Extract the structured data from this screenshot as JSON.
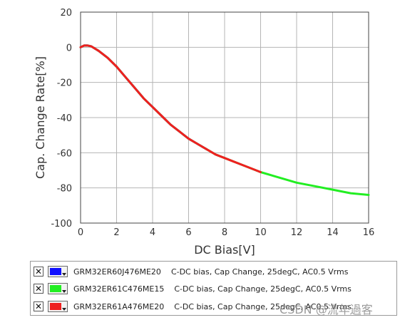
{
  "chart_data": {
    "type": "line",
    "xlabel": "DC Bias[V]",
    "ylabel": "Cap. Change Rate[%]",
    "xlim": [
      0,
      16
    ],
    "ylim": [
      -100,
      20
    ],
    "x_ticks": [
      0,
      2,
      4,
      6,
      8,
      10,
      12,
      14,
      16
    ],
    "y_ticks": [
      20,
      0,
      -20,
      -40,
      -60,
      -80,
      -100
    ],
    "grid": true,
    "legend_position": "bottom",
    "series": [
      {
        "name": "GRM32ER60J476ME20",
        "color": "#1010ff",
        "x": [
          0,
          0.2,
          0.4,
          0.6,
          1.0,
          1.5,
          2.0,
          2.5,
          3.0,
          3.5,
          4.0,
          4.5,
          5.0,
          5.5,
          6.0,
          6.5,
          7.0
        ],
        "y": [
          0,
          1,
          1,
          0.5,
          -2,
          -6,
          -11,
          -17,
          -23,
          -29,
          -34,
          -39,
          -44,
          -48,
          -52,
          -55,
          -58
        ]
      },
      {
        "name": "GRM32ER61C476ME15",
        "color": "#22ee22",
        "x": [
          0,
          0.2,
          0.4,
          0.6,
          1.0,
          1.5,
          2.0,
          2.5,
          3.0,
          3.5,
          4.0,
          4.5,
          5.0,
          5.5,
          6.0,
          6.5,
          7.0,
          7.5,
          8.0,
          9.0,
          10.0,
          11.0,
          12.0,
          13.0,
          14.0,
          15.0,
          16.0
        ],
        "y": [
          0,
          1,
          1,
          0.5,
          -2,
          -6,
          -11,
          -17,
          -23,
          -29,
          -34,
          -39,
          -44,
          -48,
          -52,
          -55,
          -58,
          -61,
          -63,
          -67,
          -71,
          -74,
          -77,
          -79,
          -81,
          -83,
          -84
        ]
      },
      {
        "name": "GRM32ER61A476ME20",
        "color": "#ee2020",
        "x": [
          0,
          0.2,
          0.4,
          0.6,
          1.0,
          1.5,
          2.0,
          2.5,
          3.0,
          3.5,
          4.0,
          4.5,
          5.0,
          5.5,
          6.0,
          6.5,
          7.0,
          7.5,
          8.0,
          8.5,
          9.0,
          9.5,
          10.0
        ],
        "y": [
          0,
          1,
          1,
          0.5,
          -2,
          -6,
          -11,
          -17,
          -23,
          -29,
          -34,
          -39,
          -44,
          -48,
          -52,
          -55,
          -58,
          -61,
          -63,
          -65,
          -67,
          -69,
          -71
        ]
      }
    ]
  },
  "legend": {
    "rows": [
      {
        "check": "✕",
        "part": "GRM32ER60J476ME20",
        "desc": "C-DC bias, Cap Change, 25degC, AC0.5 Vrms",
        "color": "#1010ff"
      },
      {
        "check": "✕",
        "part": "GRM32ER61C476ME15",
        "desc": "C-DC bias, Cap Change, 25degC, AC0.5 Vrms",
        "color": "#22ee22"
      },
      {
        "check": "✕",
        "part": "GRM32ER61A476ME20",
        "desc": "C-DC bias, Cap Change, 25degC, AC0.5 Vrms",
        "color": "#ee2020"
      }
    ]
  },
  "watermark": "CSDN @流年過客"
}
